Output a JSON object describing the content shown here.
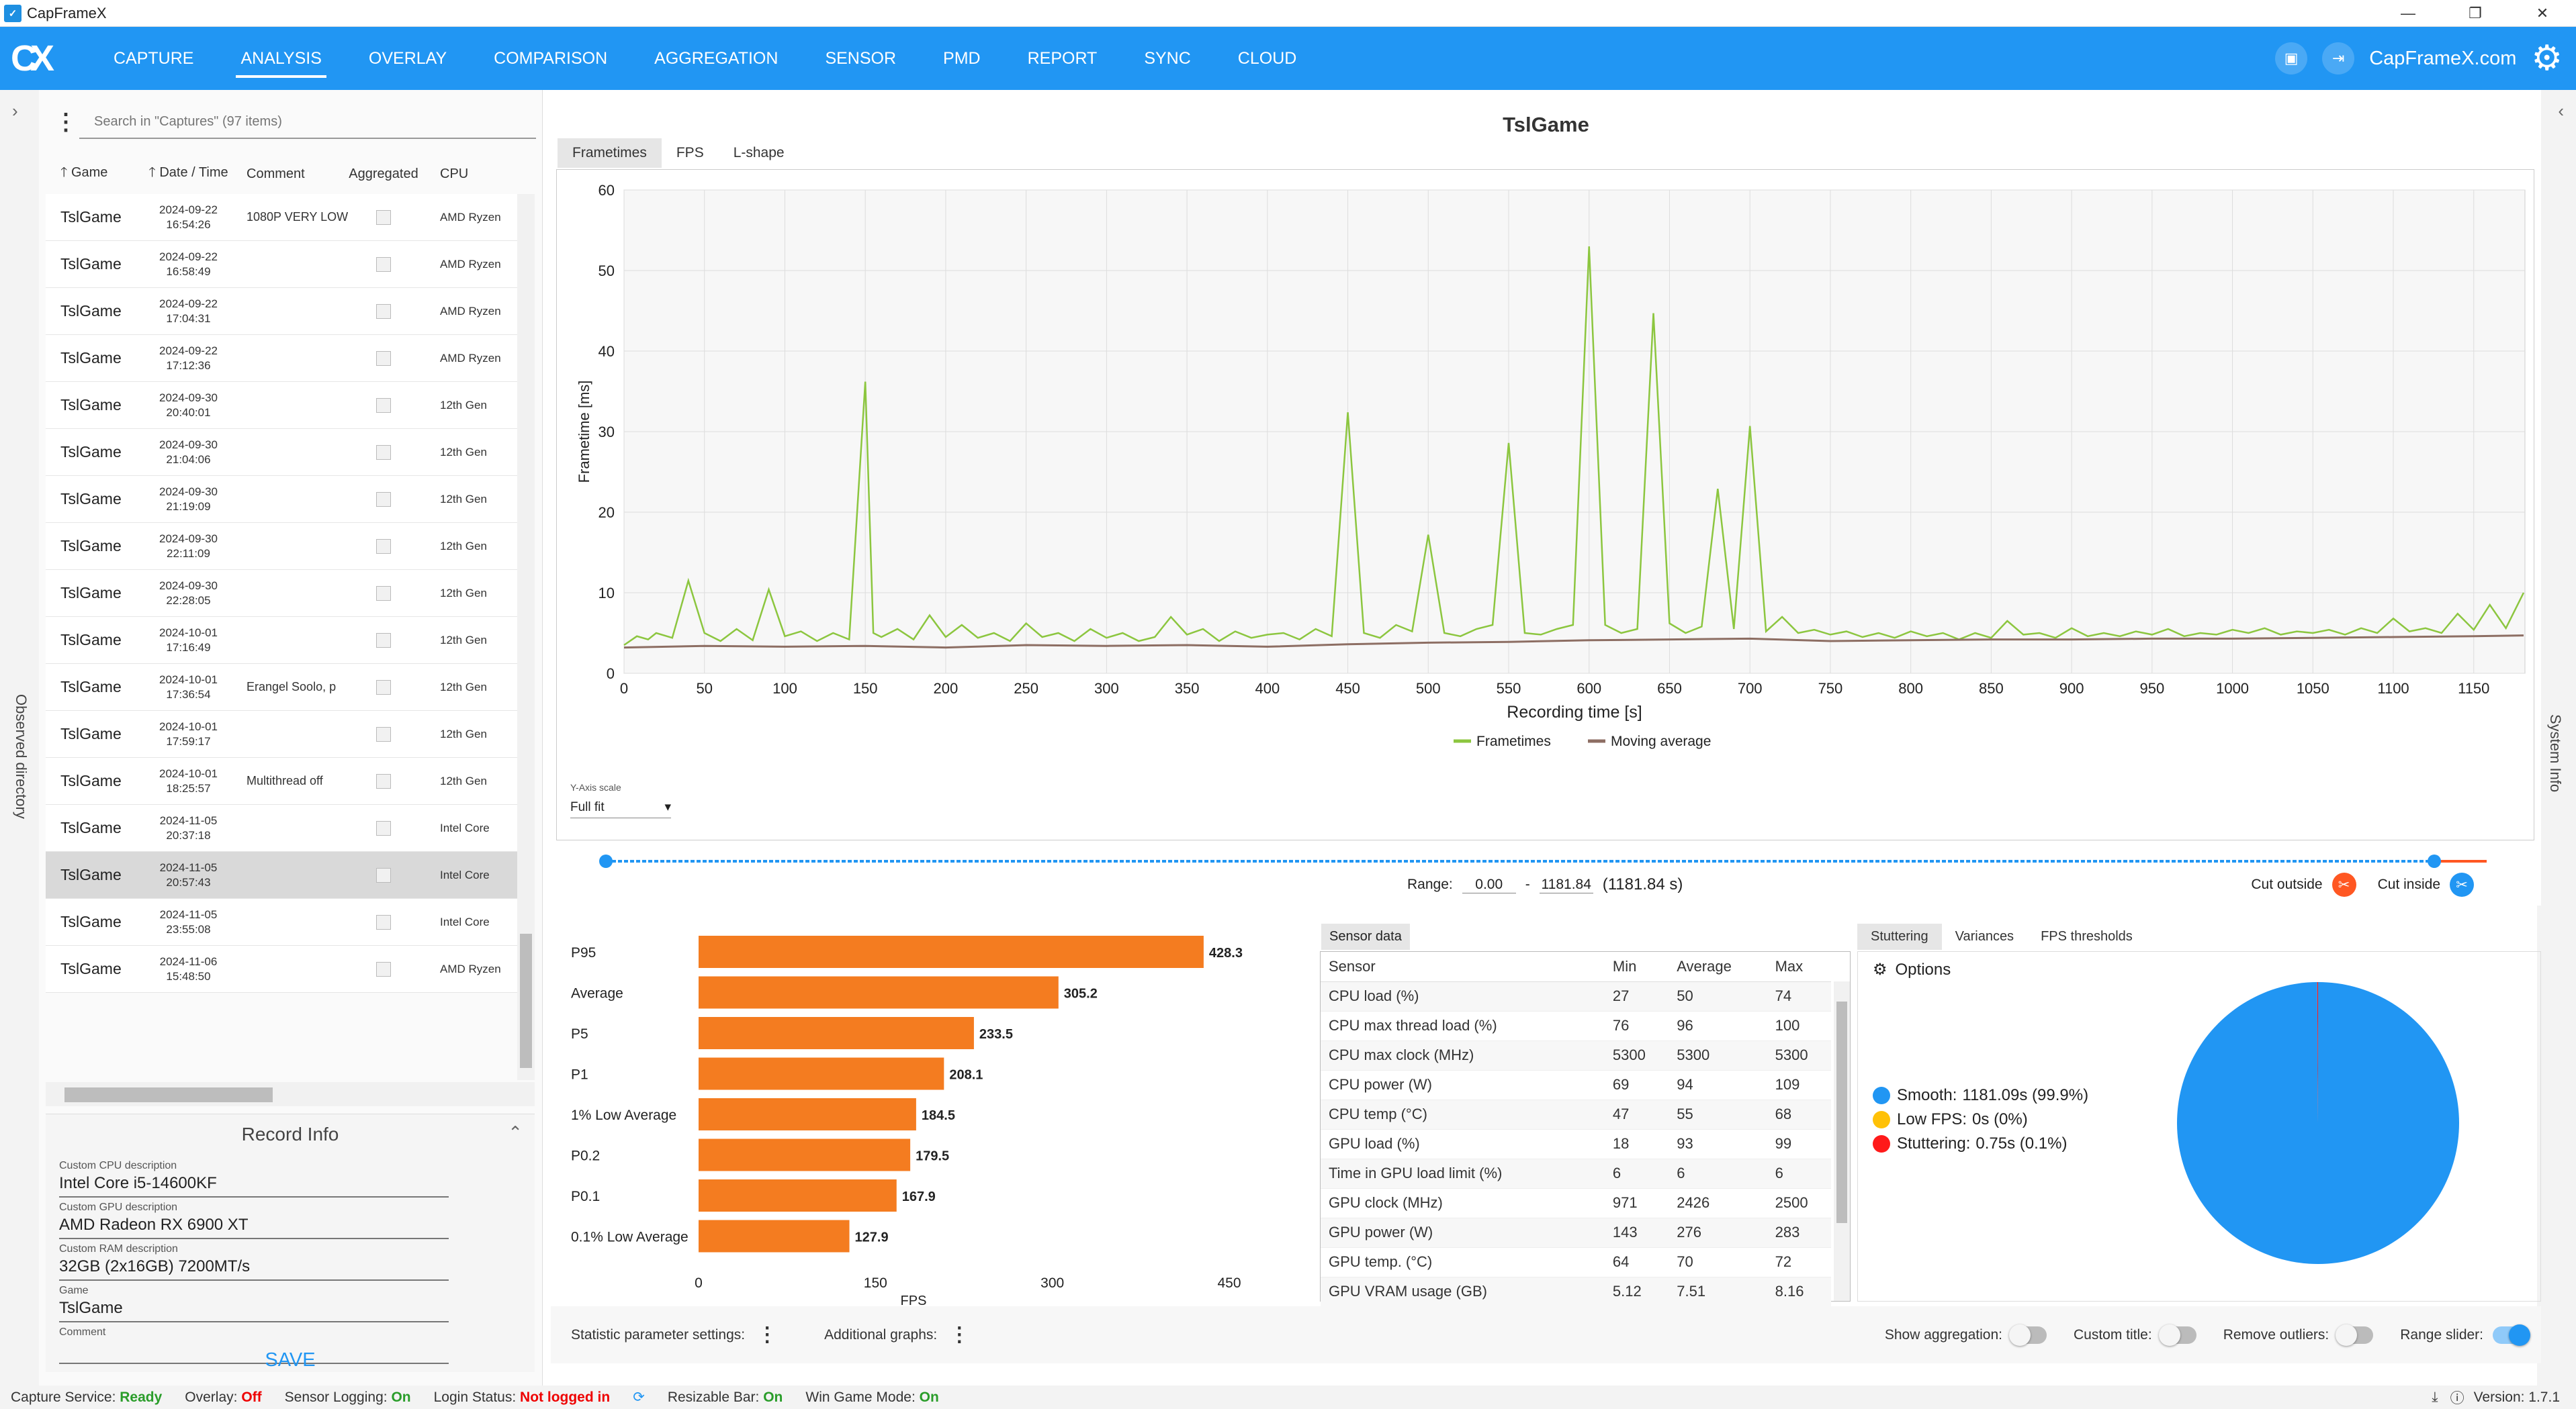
{
  "window": {
    "title": "CapFrameX"
  },
  "nav": {
    "items": [
      "CAPTURE",
      "ANALYSIS",
      "OVERLAY",
      "COMPARISON",
      "AGGREGATION",
      "SENSOR",
      "PMD",
      "REPORT",
      "SYNC",
      "CLOUD"
    ],
    "active": "ANALYSIS",
    "site_link": "CapFrameX.com"
  },
  "left_strip_label": "Observed directory",
  "right_strip_label": "System Info",
  "search": {
    "placeholder": "Search in \"Captures\" (97 items)"
  },
  "columns": {
    "game": "Game",
    "date": "Date / Time",
    "comment": "Comment",
    "aggregated": "Aggregated",
    "cpu": "CPU"
  },
  "captures": [
    {
      "game": "TslGame",
      "date": "2024-09-22",
      "time": "16:54:26",
      "comment": "1080P VERY LOW",
      "cpu": "AMD Ryzen"
    },
    {
      "game": "TslGame",
      "date": "2024-09-22",
      "time": "16:58:49",
      "comment": "",
      "cpu": "AMD Ryzen"
    },
    {
      "game": "TslGame",
      "date": "2024-09-22",
      "time": "17:04:31",
      "comment": "",
      "cpu": "AMD Ryzen"
    },
    {
      "game": "TslGame",
      "date": "2024-09-22",
      "time": "17:12:36",
      "comment": "",
      "cpu": "AMD Ryzen"
    },
    {
      "game": "TslGame",
      "date": "2024-09-30",
      "time": "20:40:01",
      "comment": "",
      "cpu": "12th Gen"
    },
    {
      "game": "TslGame",
      "date": "2024-09-30",
      "time": "21:04:06",
      "comment": "",
      "cpu": "12th Gen"
    },
    {
      "game": "TslGame",
      "date": "2024-09-30",
      "time": "21:19:09",
      "comment": "",
      "cpu": "12th Gen"
    },
    {
      "game": "TslGame",
      "date": "2024-09-30",
      "time": "22:11:09",
      "comment": "",
      "cpu": "12th Gen"
    },
    {
      "game": "TslGame",
      "date": "2024-09-30",
      "time": "22:28:05",
      "comment": "",
      "cpu": "12th Gen"
    },
    {
      "game": "TslGame",
      "date": "2024-10-01",
      "time": "17:16:49",
      "comment": "",
      "cpu": "12th Gen"
    },
    {
      "game": "TslGame",
      "date": "2024-10-01",
      "time": "17:36:54",
      "comment": "Erangel Soolo, p",
      "cpu": "12th Gen"
    },
    {
      "game": "TslGame",
      "date": "2024-10-01",
      "time": "17:59:17",
      "comment": "",
      "cpu": "12th Gen"
    },
    {
      "game": "TslGame",
      "date": "2024-10-01",
      "time": "18:25:57",
      "comment": "Multithread off",
      "cpu": "12th Gen"
    },
    {
      "game": "TslGame",
      "date": "2024-11-05",
      "time": "20:37:18",
      "comment": "",
      "cpu": "Intel Core"
    },
    {
      "game": "TslGame",
      "date": "2024-11-05",
      "time": "20:57:43",
      "comment": "",
      "cpu": "Intel Core",
      "selected": true
    },
    {
      "game": "TslGame",
      "date": "2024-11-05",
      "time": "23:55:08",
      "comment": "",
      "cpu": "Intel Core"
    },
    {
      "game": "TslGame",
      "date": "2024-11-06",
      "time": "15:48:50",
      "comment": "",
      "cpu": "AMD Ryzen"
    }
  ],
  "record_info": {
    "title": "Record Info",
    "fields": [
      {
        "label": "Custom CPU description",
        "value": "Intel Core i5-14600KF"
      },
      {
        "label": "Custom GPU description",
        "value": "AMD Radeon RX 6900 XT"
      },
      {
        "label": "Custom RAM description",
        "value": "32GB (2x16GB) 7200MT/s"
      },
      {
        "label": "Game",
        "value": "TslGame"
      },
      {
        "label": "Comment",
        "value": ""
      }
    ],
    "save_label": "SAVE"
  },
  "analysis": {
    "title": "TslGame",
    "tabs": [
      "Frametimes",
      "FPS",
      "L-shape"
    ],
    "active_tab": "Frametimes",
    "yaxis_scale_label": "Y-Axis scale",
    "yaxis_scale_value": "Full fit",
    "range_label": "Range:",
    "range_start": "0.00",
    "range_sep": "-",
    "range_end": "1181.84",
    "range_span": "(1181.84 s)",
    "cut_outside": "Cut outside",
    "cut_inside": "Cut inside"
  },
  "chart_data": [
    {
      "type": "line",
      "xlabel": "Recording time [s]",
      "ylabel": "Frametime [ms]",
      "xlim": [
        0,
        1181.84
      ],
      "ylim": [
        0,
        60
      ],
      "xticks": [
        0,
        50,
        100,
        150,
        200,
        250,
        300,
        350,
        400,
        450,
        500,
        550,
        600,
        650,
        700,
        750,
        800,
        850,
        900,
        950,
        1000,
        1050,
        1100,
        1150
      ],
      "yticks": [
        0,
        10,
        20,
        30,
        40,
        50,
        60
      ],
      "grid": true,
      "legend_position": "bottom-center",
      "series": [
        {
          "name": "Frametimes",
          "color": "#8cc63f",
          "x": [
            0,
            8,
            15,
            20,
            30,
            40,
            50,
            60,
            70,
            80,
            90,
            100,
            110,
            120,
            130,
            140,
            150,
            155,
            160,
            170,
            180,
            190,
            200,
            210,
            220,
            230,
            240,
            250,
            260,
            270,
            280,
            290,
            300,
            310,
            320,
            330,
            340,
            350,
            360,
            370,
            380,
            390,
            400,
            410,
            420,
            430,
            440,
            450,
            460,
            470,
            480,
            490,
            500,
            510,
            520,
            530,
            540,
            550,
            560,
            570,
            580,
            590,
            600,
            610,
            620,
            630,
            640,
            650,
            660,
            670,
            680,
            690,
            700,
            710,
            720,
            730,
            740,
            750,
            760,
            770,
            780,
            790,
            800,
            810,
            820,
            830,
            840,
            850,
            860,
            870,
            880,
            890,
            900,
            910,
            920,
            930,
            940,
            950,
            960,
            970,
            980,
            990,
            1000,
            1010,
            1020,
            1030,
            1040,
            1050,
            1060,
            1070,
            1080,
            1090,
            1100,
            1110,
            1120,
            1130,
            1140,
            1150,
            1160,
            1170,
            1181
          ],
          "y": [
            3.5,
            4.6,
            4.2,
            5.0,
            4.4,
            11.5,
            5.0,
            4.0,
            5.5,
            4.1,
            10.4,
            4.6,
            5.2,
            4.0,
            5.0,
            4.2,
            36.2,
            5.0,
            4.5,
            5.5,
            4.2,
            7.2,
            4.5,
            6.0,
            4.4,
            5.0,
            4.0,
            6.2,
            4.5,
            5.0,
            4.0,
            5.5,
            4.4,
            5.0,
            4.0,
            4.5,
            7.0,
            4.8,
            5.5,
            4.0,
            5.2,
            4.4,
            4.8,
            5.0,
            4.2,
            5.5,
            4.6,
            32.4,
            5.0,
            4.4,
            6.0,
            5.2,
            17.2,
            5.0,
            4.6,
            5.5,
            6.0,
            28.6,
            5.0,
            4.8,
            5.5,
            6.0,
            53.0,
            6.0,
            5.0,
            5.5,
            44.7,
            6.2,
            5.0,
            5.8,
            22.9,
            5.5,
            30.7,
            5.2,
            7.0,
            5.0,
            5.4,
            4.8,
            5.2,
            4.5,
            5.0,
            4.4,
            5.2,
            4.6,
            5.0,
            4.2,
            5.0,
            4.4,
            6.5,
            4.8,
            5.0,
            4.4,
            5.6,
            4.6,
            5.0,
            4.6,
            5.2,
            4.8,
            5.5,
            4.6,
            5.0,
            4.8,
            5.4,
            5.0,
            5.6,
            4.8,
            5.2,
            5.0,
            5.4,
            4.8,
            5.6,
            5.0,
            6.8,
            5.2,
            5.6,
            5.0,
            7.4,
            5.4,
            8.5,
            5.6,
            10.0
          ]
        },
        {
          "name": "Moving average",
          "color": "#8d6e63",
          "x": [
            0,
            50,
            100,
            150,
            200,
            250,
            300,
            350,
            400,
            450,
            500,
            550,
            600,
            650,
            700,
            750,
            800,
            850,
            900,
            950,
            1000,
            1050,
            1100,
            1150,
            1181
          ],
          "y": [
            3.2,
            3.4,
            3.3,
            3.4,
            3.2,
            3.5,
            3.4,
            3.5,
            3.3,
            3.6,
            3.8,
            3.9,
            4.1,
            4.2,
            4.3,
            4.0,
            4.1,
            4.2,
            4.2,
            4.3,
            4.3,
            4.4,
            4.5,
            4.6,
            4.7
          ]
        }
      ]
    },
    {
      "type": "bar",
      "orientation": "horizontal",
      "categories": [
        "P95",
        "Average",
        "P5",
        "P1",
        "1% Low Average",
        "P0.2",
        "P0.1",
        "0.1% Low Average"
      ],
      "values": [
        428.3,
        305.2,
        233.5,
        208.1,
        184.5,
        179.5,
        167.9,
        127.9
      ],
      "xlabel": "FPS",
      "xlim": [
        0,
        450
      ],
      "xticks": [
        0,
        150,
        300,
        450
      ],
      "color": "#f47c20"
    },
    {
      "type": "pie",
      "categories": [
        "Smooth",
        "Low FPS",
        "Stuttering"
      ],
      "values": [
        99.9,
        0,
        0.1
      ],
      "colors": [
        "#2196f3",
        "#ffc107",
        "#ff1a1a"
      ]
    }
  ],
  "sensor": {
    "tab": "Sensor data",
    "headers": [
      "Sensor",
      "Min",
      "Average",
      "Max"
    ],
    "rows": [
      [
        "CPU load (%)",
        "27",
        "50",
        "74"
      ],
      [
        "CPU max thread load (%)",
        "76",
        "96",
        "100"
      ],
      [
        "CPU max clock (MHz)",
        "5300",
        "5300",
        "5300"
      ],
      [
        "CPU power (W)",
        "69",
        "94",
        "109"
      ],
      [
        "CPU temp (°C)",
        "47",
        "55",
        "68"
      ],
      [
        "GPU load (%)",
        "18",
        "93",
        "99"
      ],
      [
        "Time in GPU load limit (%)",
        "6",
        "6",
        "6"
      ],
      [
        "GPU clock (MHz)",
        "971",
        "2426",
        "2500"
      ],
      [
        "GPU power (W)",
        "143",
        "276",
        "283"
      ],
      [
        "GPU temp. (°C)",
        "64",
        "70",
        "72"
      ],
      [
        "GPU VRAM usage (GB)",
        "5.12",
        "7.51",
        "8.16"
      ]
    ]
  },
  "stuttering": {
    "tabs": [
      "Stuttering",
      "Variances",
      "FPS thresholds"
    ],
    "active_tab": "Stuttering",
    "options_label": "Options",
    "legend": [
      {
        "label": "Smooth:",
        "value": "1181.09s (99.9%)",
        "color": "#2196f3"
      },
      {
        "label": "Low FPS:",
        "value": "0s (0%)",
        "color": "#ffc107"
      },
      {
        "label": "Stuttering:",
        "value": "0.75s (0.1%)",
        "color": "#ff1a1a"
      }
    ]
  },
  "options_bar": {
    "stat_params": "Statistic parameter settings:",
    "additional_graphs": "Additional graphs:",
    "show_aggregation": "Show aggregation:",
    "custom_title": "Custom title:",
    "remove_outliers": "Remove outliers:",
    "range_slider": "Range slider:"
  },
  "status": {
    "capture_service_label": "Capture Service:",
    "capture_service_value": "Ready",
    "overlay_label": "Overlay:",
    "overlay_value": "Off",
    "sensor_logging_label": "Sensor Logging:",
    "sensor_logging_value": "On",
    "login_label": "Login Status:",
    "login_value": "Not logged in",
    "resizable_bar_label": "Resizable Bar:",
    "resizable_bar_value": "On",
    "win_game_mode_label": "Win Game Mode:",
    "win_game_mode_value": "On",
    "version": "Version: 1.7.1"
  }
}
